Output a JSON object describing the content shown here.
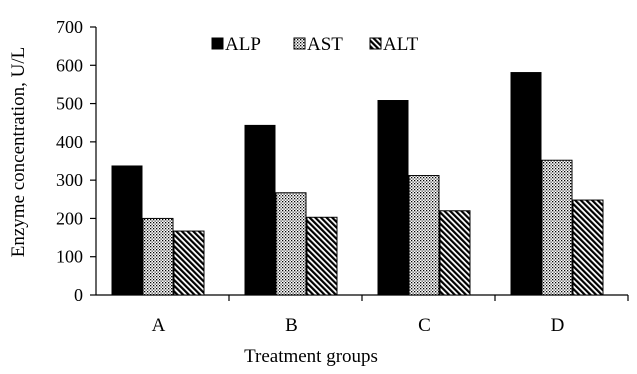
{
  "chart_data": {
    "type": "bar",
    "title": "",
    "xlabel": "Treatment groups",
    "ylabel": "Enzyme concentration, U/L",
    "categories": [
      "A",
      "B",
      "C",
      "D"
    ],
    "ylim": [
      0,
      700
    ],
    "yticks": [
      0,
      100,
      200,
      300,
      400,
      500,
      600,
      700
    ],
    "grid": false,
    "legend": "top-center",
    "series": [
      {
        "name": "ALP",
        "values": [
          337,
          443,
          508,
          581
        ],
        "pattern": "solid-black"
      },
      {
        "name": "AST",
        "values": [
          200,
          267,
          312,
          352
        ],
        "pattern": "dotted"
      },
      {
        "name": "ALT",
        "values": [
          167,
          203,
          220,
          248
        ],
        "pattern": "diagonal-hatch"
      }
    ]
  }
}
